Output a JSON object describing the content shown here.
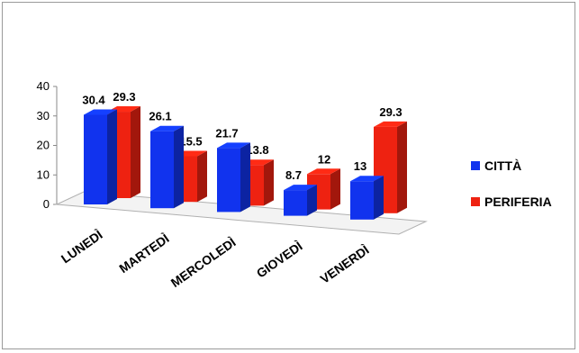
{
  "chart_data": {
    "type": "bar",
    "categories": [
      "LUNEDÌ",
      "MARTEDÌ",
      "MERCOLEDÌ",
      "GIOVEDÌ",
      "VENERDÌ"
    ],
    "series": [
      {
        "name": "CITTÀ",
        "values": [
          30.4,
          26.1,
          21.7,
          8.7,
          13
        ],
        "color": "#1133ee"
      },
      {
        "name": "PERIFERIA",
        "values": [
          29.3,
          15.5,
          13.8,
          12,
          29.3
        ],
        "color": "#ee2211"
      }
    ],
    "y_ticks": [
      "0",
      "10",
      "20",
      "30",
      "40"
    ],
    "ylim": [
      0,
      40
    ],
    "style": "3d-clustered-column",
    "legend_position": "right",
    "grid": false
  }
}
